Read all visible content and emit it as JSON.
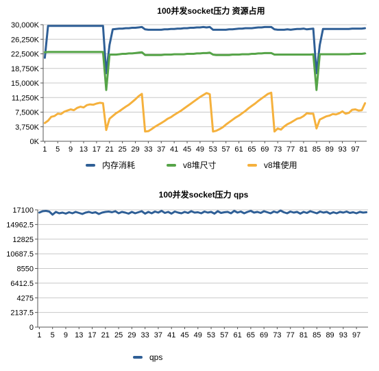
{
  "chart_data": [
    {
      "type": "line",
      "title": "100并发socket压力 资源占用",
      "xlabel": "",
      "ylabel": "",
      "x_tick_labels": [
        "1",
        "5",
        "9",
        "13",
        "17",
        "21",
        "25",
        "29",
        "33",
        "37",
        "41",
        "45",
        "49",
        "53",
        "57",
        "61",
        "65",
        "69",
        "73",
        "77",
        "81",
        "85",
        "89",
        "93",
        "97"
      ],
      "y_tick_labels": [
        "0K",
        "3,750K",
        "7,500K",
        "11,250K",
        "15,000K",
        "18,750K",
        "22,500K",
        "26,250K",
        "30,000K"
      ],
      "ylim": [
        0,
        30000
      ],
      "grid": true,
      "legend": "bottom",
      "series": [
        {
          "name": "内存消耗",
          "color": "#2f5f96",
          "values": [
            21500,
            29700,
            29700,
            29700,
            29700,
            29700,
            29700,
            29700,
            29700,
            29700,
            29700,
            29700,
            29700,
            29700,
            29700,
            29700,
            29700,
            29700,
            29700,
            17500,
            24800,
            28800,
            28900,
            29000,
            29000,
            29100,
            29100,
            29200,
            29200,
            29300,
            29400,
            28800,
            28700,
            28700,
            28700,
            28700,
            28700,
            28800,
            28800,
            28900,
            28900,
            29000,
            29000,
            29100,
            29100,
            29200,
            29200,
            29300,
            29300,
            29400,
            29300,
            29400,
            28700,
            28700,
            28700,
            28700,
            28700,
            28800,
            28800,
            28900,
            29000,
            29000,
            29100,
            29100,
            29100,
            29200,
            29300,
            29300,
            29400,
            29400,
            29400,
            28800,
            28700,
            28700,
            28700,
            28800,
            28700,
            28800,
            28900,
            28900,
            29000,
            28800,
            28900,
            29000,
            17500,
            24800,
            28900,
            28900,
            28900,
            28900,
            28900,
            28900,
            28900,
            28900,
            28900,
            29000,
            29000,
            29000,
            29000,
            29100
          ]
        },
        {
          "name": "v8堆尺寸",
          "color": "#56a448",
          "values": [
            22900,
            23000,
            23000,
            23000,
            23000,
            23000,
            23000,
            23000,
            23000,
            23000,
            23000,
            23000,
            23000,
            23000,
            23000,
            23000,
            23000,
            23000,
            23000,
            13200,
            22300,
            22300,
            22300,
            22400,
            22500,
            22500,
            22600,
            22600,
            22700,
            22800,
            22900,
            22200,
            22200,
            22200,
            22200,
            22200,
            22200,
            22300,
            22300,
            22300,
            22400,
            22400,
            22400,
            22400,
            22500,
            22500,
            22500,
            22600,
            22600,
            22700,
            22700,
            22800,
            22300,
            22200,
            22200,
            22200,
            22200,
            22200,
            22300,
            22300,
            22300,
            22400,
            22400,
            22400,
            22500,
            22500,
            22600,
            22600,
            22700,
            22700,
            22700,
            22300,
            22300,
            22300,
            22300,
            22300,
            22300,
            22300,
            22300,
            22300,
            22300,
            22300,
            22300,
            22400,
            13200,
            22400,
            22400,
            22400,
            22400,
            22400,
            22400,
            22400,
            22400,
            22400,
            22400,
            22500,
            22500,
            22500,
            22500,
            22600
          ]
        },
        {
          "name": "v8堆使用",
          "color": "#f5b13d",
          "values": [
            4700,
            5300,
            6300,
            6500,
            7100,
            7000,
            7600,
            7900,
            8200,
            8000,
            8600,
            8900,
            8700,
            9300,
            9500,
            9400,
            9700,
            9900,
            9800,
            2900,
            5800,
            6500,
            7200,
            7700,
            8300,
            8900,
            9400,
            10100,
            10800,
            11600,
            12200,
            2500,
            2600,
            3100,
            3700,
            4200,
            4700,
            5200,
            5800,
            6200,
            6800,
            7300,
            7800,
            8400,
            9000,
            9600,
            10200,
            10800,
            11400,
            11900,
            12400,
            12100,
            2500,
            2700,
            3100,
            3600,
            4300,
            4900,
            5500,
            6100,
            6600,
            7200,
            7800,
            8500,
            9100,
            9700,
            10400,
            11000,
            11600,
            12200,
            12500,
            2500,
            3300,
            3000,
            3800,
            4400,
            4800,
            5300,
            5800,
            6000,
            6500,
            7200,
            7100,
            7100,
            3300,
            5600,
            6000,
            6400,
            6600,
            7000,
            6900,
            7200,
            7700,
            7100,
            7300,
            8100,
            8200,
            7900,
            8000,
            9800
          ]
        }
      ]
    },
    {
      "type": "line",
      "title": "100并发socket压力 qps",
      "xlabel": "",
      "ylabel": "",
      "x_tick_labels": [
        "1",
        "5",
        "9",
        "13",
        "17",
        "21",
        "25",
        "29",
        "33",
        "37",
        "41",
        "45",
        "49",
        "53",
        "57",
        "61",
        "65",
        "69",
        "73",
        "77",
        "81",
        "85",
        "89",
        "93",
        "97"
      ],
      "y_tick_labels": [
        "0",
        "2137.5",
        "4275",
        "6412.5",
        "8550",
        "10687.5",
        "12825",
        "14962.5",
        "17100"
      ],
      "ylim": [
        0,
        17100
      ],
      "grid": true,
      "legend": "bottom-left",
      "series": [
        {
          "name": "qps",
          "color": "#2f5f96",
          "values": [
            16700,
            16900,
            16950,
            16850,
            16400,
            16800,
            16600,
            16700,
            16550,
            16750,
            16600,
            16800,
            16650,
            16500,
            16700,
            16800,
            16650,
            16750,
            16500,
            16700,
            16800,
            16850,
            16750,
            16900,
            16600,
            16800,
            16700,
            16550,
            16800,
            16600,
            16750,
            16900,
            16550,
            16800,
            16600,
            16850,
            16700,
            16950,
            16650,
            16800,
            16550,
            16850,
            16700,
            16600,
            16800,
            16650,
            16900,
            16700,
            16750,
            16600,
            16850,
            16700,
            16800,
            16550,
            16900,
            16650,
            16750,
            16800,
            16600,
            16950,
            16700,
            16850,
            16600,
            16800,
            16950,
            16700,
            16800,
            16650,
            16900,
            16750,
            16600,
            16850,
            16700,
            17000,
            16750,
            16600,
            16850,
            16700,
            16800,
            16550,
            16800,
            16650,
            16900,
            16750,
            16600,
            16850,
            16700,
            16800,
            16550,
            16750,
            16600,
            16800,
            16700,
            16850,
            16650,
            16750,
            16600,
            16800,
            16700,
            16750
          ]
        }
      ]
    }
  ]
}
